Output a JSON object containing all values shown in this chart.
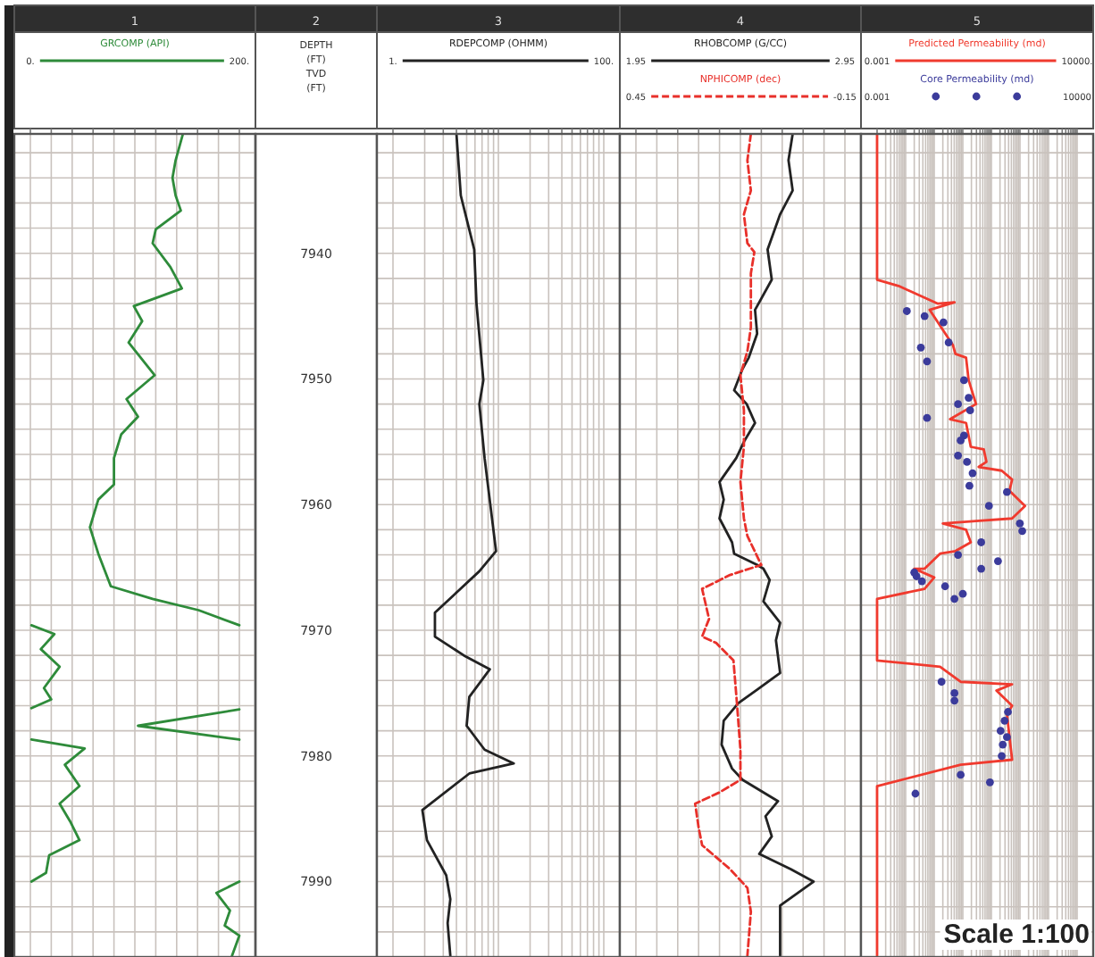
{
  "chart_data": [
    {
      "type": "line",
      "orientation": "horizontal",
      "title": "1",
      "subtitle": "2",
      "ylabel": "DEPTH (FT) TVD (FT)",
      "legend": "top",
      "grid": true,
      "ylim": [
        7996,
        7930.5
      ],
      "xlim": [
        0,
        200
      ],
      "xticks": [
        {
          "value": 0,
          "label": "0."
        },
        {
          "value": 20,
          "label": null
        },
        {
          "value": 40,
          "label": null
        },
        {
          "value": 60,
          "label": null
        },
        {
          "value": 80,
          "label": null
        },
        {
          "value": 100,
          "label": null
        },
        {
          "value": 120,
          "label": null
        },
        {
          "value": 140,
          "label": null
        },
        {
          "value": 160,
          "label": null
        },
        {
          "value": 180,
          "label": null
        },
        {
          "value": 200,
          "label": "200."
        }
      ],
      "yticks": [
        {
          "value": 7932,
          "label": null
        },
        {
          "value": 7934,
          "label": null
        },
        {
          "value": 7936,
          "label": null
        },
        {
          "value": 7938,
          "label": null
        },
        {
          "value": 7940,
          "label": "7940"
        },
        {
          "value": 7942,
          "label": null
        },
        {
          "value": 7944,
          "label": null
        },
        {
          "value": 7946,
          "label": null
        },
        {
          "value": 7948,
          "label": null
        },
        {
          "value": 7950,
          "label": "7950"
        },
        {
          "value": 7952,
          "label": null
        },
        {
          "value": 7954,
          "label": null
        },
        {
          "value": 7956,
          "label": null
        },
        {
          "value": 7958,
          "label": null
        },
        {
          "value": 7960,
          "label": "7960"
        },
        {
          "value": 7962,
          "label": null
        },
        {
          "value": 7964,
          "label": null
        },
        {
          "value": 7966,
          "label": null
        },
        {
          "value": 7968,
          "label": null
        },
        {
          "value": 7970,
          "label": "7970"
        },
        {
          "value": 7972,
          "label": null
        },
        {
          "value": 7974,
          "label": null
        },
        {
          "value": 7976,
          "label": null
        },
        {
          "value": 7978,
          "label": null
        },
        {
          "value": 7980,
          "label": "7980"
        },
        {
          "value": 7982,
          "label": null
        },
        {
          "value": 7984,
          "label": null
        },
        {
          "value": 7986,
          "label": null
        },
        {
          "value": 7988,
          "label": null
        },
        {
          "value": 7990,
          "label": "7990"
        },
        {
          "value": 7992,
          "label": null
        },
        {
          "value": 7994,
          "label": null
        }
      ],
      "series": [
        {
          "name": "GRCOMP (API)",
          "color": "#2e8b3a",
          "values": [
            146,
            139,
            136,
            139,
            144,
            120,
            117,
            134,
            145,
            99,
            107,
            94,
            119,
            92,
            103,
            87,
            80,
            80,
            65,
            57,
            65,
            77,
            117,
            161,
            200,
            null,
            1,
            23,
            10,
            28,
            13,
            20,
            1,
            null,
            200,
            103,
            200,
            null,
            1,
            52,
            33,
            47,
            28,
            38,
            47,
            18,
            15,
            1,
            null,
            200,
            178,
            191,
            186,
            200,
            193
          ],
          "x": [
            7930.5,
            7932.6,
            7934.0,
            7935.4,
            7936.6,
            7938.1,
            7939.2,
            7941.1,
            7942.8,
            7944.2,
            7945.4,
            7947.1,
            7949.7,
            7951.6,
            7953.0,
            7954.4,
            7956.3,
            7958.4,
            7959.6,
            7961.8,
            7963.9,
            7966.5,
            7967.5,
            7968.4,
            7969.6,
            null,
            7969.6,
            7970.3,
            7971.5,
            7972.9,
            7974.6,
            7975.5,
            7976.2,
            null,
            7976.3,
            7977.6,
            7978.7,
            null,
            7978.7,
            7979.4,
            7980.7,
            7982.4,
            7983.8,
            7985.2,
            7986.7,
            7987.9,
            7989.3,
            7990.0,
            null,
            7990.0,
            7990.9,
            7992.3,
            7993.5,
            7994.3,
            7995.9
          ]
        }
      ]
    },
    {
      "type": "line",
      "orientation": "horizontal",
      "title": "3",
      "legend": "top",
      "grid": true,
      "tick_labels": "x",
      "log": "x",
      "ylim": [
        7996,
        7930.5
      ],
      "xlim": [
        1,
        100
      ],
      "xticks": [
        {
          "value": 1,
          "label": "1."
        },
        {
          "value": 2,
          "label": null
        },
        {
          "value": 3,
          "label": null
        },
        {
          "value": 4,
          "label": null
        },
        {
          "value": 5,
          "label": null
        },
        {
          "value": 6,
          "label": null
        },
        {
          "value": 7,
          "label": null
        },
        {
          "value": 8,
          "label": null
        },
        {
          "value": 9,
          "label": null
        },
        {
          "value": 10,
          "label": null
        },
        {
          "value": 20,
          "label": null
        },
        {
          "value": 30,
          "label": null
        },
        {
          "value": 40,
          "label": null
        },
        {
          "value": 50,
          "label": null
        },
        {
          "value": 60,
          "label": null
        },
        {
          "value": 70,
          "label": null
        },
        {
          "value": 80,
          "label": null
        },
        {
          "value": 90,
          "label": null
        },
        {
          "value": 100,
          "label": "100."
        }
      ],
      "yticks": [
        {
          "value": 7932,
          "label": null
        },
        {
          "value": 7934,
          "label": null
        },
        {
          "value": 7936,
          "label": null
        },
        {
          "value": 7938,
          "label": null
        },
        {
          "value": 7940,
          "label": null
        },
        {
          "value": 7942,
          "label": null
        },
        {
          "value": 7944,
          "label": null
        },
        {
          "value": 7946,
          "label": null
        },
        {
          "value": 7948,
          "label": null
        },
        {
          "value": 7950,
          "label": null
        },
        {
          "value": 7952,
          "label": null
        },
        {
          "value": 7954,
          "label": null
        },
        {
          "value": 7956,
          "label": null
        },
        {
          "value": 7958,
          "label": null
        },
        {
          "value": 7960,
          "label": null
        },
        {
          "value": 7962,
          "label": null
        },
        {
          "value": 7964,
          "label": null
        },
        {
          "value": 7966,
          "label": null
        },
        {
          "value": 7968,
          "label": null
        },
        {
          "value": 7970,
          "label": null
        },
        {
          "value": 7972,
          "label": null
        },
        {
          "value": 7974,
          "label": null
        },
        {
          "value": 7976,
          "label": null
        },
        {
          "value": 7978,
          "label": null
        },
        {
          "value": 7980,
          "label": null
        },
        {
          "value": 7982,
          "label": null
        },
        {
          "value": 7984,
          "label": null
        },
        {
          "value": 7986,
          "label": null
        },
        {
          "value": 7988,
          "label": null
        },
        {
          "value": 7990,
          "label": null
        },
        {
          "value": 7992,
          "label": null
        },
        {
          "value": 7994,
          "label": null
        }
      ],
      "series": [
        {
          "name": "RDEPCOMP (OHMM)",
          "color": "#222222",
          "values": [
            4.0,
            4.4,
            5.9,
            6.2,
            7.2,
            6.6,
            7.4,
            9.5,
            6.6,
            2.5,
            2.5,
            4.7,
            8.3,
            5.3,
            5.0,
            7.4,
            14,
            5.3,
            1.9,
            2.1,
            3.2,
            3.5,
            3.3,
            3.5
          ],
          "x": [
            7930.5,
            7935.4,
            7939.7,
            7944.0,
            7950.1,
            7952.0,
            7956.3,
            7963.7,
            7965.3,
            7968.6,
            7970.5,
            7972.0,
            7973.1,
            7975.3,
            7977.6,
            7979.5,
            7980.6,
            7981.4,
            7984.3,
            7986.7,
            7989.5,
            7991.4,
            7993.3,
            7995.9
          ]
        }
      ]
    },
    {
      "type": "line",
      "orientation": "horizontal",
      "title": "4",
      "legend": "top",
      "grid": true,
      "tick_labels": "x",
      "ylim": [
        7996,
        7930.5
      ],
      "xlim": [
        1.95,
        2.95
      ],
      "xticks": [
        {
          "value": 1.95,
          "label": "1.95"
        },
        {
          "value": 2.05,
          "label": null
        },
        {
          "value": 2.15,
          "label": null
        },
        {
          "value": 2.25,
          "label": null
        },
        {
          "value": 2.35,
          "label": null
        },
        {
          "value": 2.45,
          "label": null
        },
        {
          "value": 2.55,
          "label": null
        },
        {
          "value": 2.65,
          "label": null
        },
        {
          "value": 2.75,
          "label": null
        },
        {
          "value": 2.85,
          "label": null
        },
        {
          "value": 2.95,
          "label": "2.95"
        }
      ],
      "x2lim": [
        0.45,
        -0.15
      ],
      "x2ticks": [
        {
          "value": 0.45,
          "label": "0.45"
        },
        {
          "value": -0.15,
          "label": "-0.15"
        }
      ],
      "yticks": [
        {
          "value": 7932,
          "label": null
        },
        {
          "value": 7934,
          "label": null
        },
        {
          "value": 7936,
          "label": null
        },
        {
          "value": 7938,
          "label": null
        },
        {
          "value": 7940,
          "label": null
        },
        {
          "value": 7942,
          "label": null
        },
        {
          "value": 7944,
          "label": null
        },
        {
          "value": 7946,
          "label": null
        },
        {
          "value": 7948,
          "label": null
        },
        {
          "value": 7950,
          "label": null
        },
        {
          "value": 7952,
          "label": null
        },
        {
          "value": 7954,
          "label": null
        },
        {
          "value": 7956,
          "label": null
        },
        {
          "value": 7958,
          "label": null
        },
        {
          "value": 7960,
          "label": null
        },
        {
          "value": 7962,
          "label": null
        },
        {
          "value": 7964,
          "label": null
        },
        {
          "value": 7966,
          "label": null
        },
        {
          "value": 7968,
          "label": null
        },
        {
          "value": 7970,
          "label": null
        },
        {
          "value": 7972,
          "label": null
        },
        {
          "value": 7974,
          "label": null
        },
        {
          "value": 7976,
          "label": null
        },
        {
          "value": 7978,
          "label": null
        },
        {
          "value": 7980,
          "label": null
        },
        {
          "value": 7982,
          "label": null
        },
        {
          "value": 7984,
          "label": null
        },
        {
          "value": 7986,
          "label": null
        },
        {
          "value": 7988,
          "label": null
        },
        {
          "value": 7990,
          "label": null
        },
        {
          "value": 7992,
          "label": null
        },
        {
          "value": 7994,
          "label": null
        }
      ],
      "series": [
        {
          "name": "RHOBCOMP (G/CC)",
          "color": "#222222",
          "values": [
            2.7,
            2.68,
            2.7,
            2.64,
            2.58,
            2.6,
            2.52,
            2.53,
            2.49,
            2.46,
            2.42,
            2.48,
            2.52,
            2.47,
            2.43,
            2.35,
            2.37,
            2.35,
            2.41,
            2.42,
            2.53,
            2.56,
            2.59,
            2.56,
            2.64,
            2.62,
            2.64,
            2.54,
            2.44,
            2.37,
            2.36,
            2.41,
            2.46,
            2.63,
            2.57,
            2.6,
            2.54,
            2.69,
            2.8,
            2.64,
            2.64
          ],
          "x": [
            7930.5,
            7932.6,
            7935.0,
            7936.9,
            7939.7,
            7942.1,
            7944.5,
            7946.4,
            7948.3,
            7949.2,
            7950.9,
            7952.0,
            7953.5,
            7954.9,
            7956.3,
            7958.2,
            7959.6,
            7961.1,
            7963.0,
            7963.9,
            7964.8,
            7965.1,
            7966.0,
            7967.7,
            7969.4,
            7970.8,
            7973.4,
            7974.6,
            7975.8,
            7977.2,
            7979.1,
            7981.0,
            7981.9,
            7983.6,
            7984.8,
            7986.4,
            7987.8,
            7989.0,
            7990.0,
            7991.9,
            7995.9
          ]
        },
        {
          "name": "NPHICOMP (dec)",
          "color": "#e8302a",
          "axis": "x2",
          "line_style": "dashed",
          "values": [
            0.12,
            0.13,
            0.12,
            0.14,
            0.13,
            0.11,
            0.12,
            0.12,
            0.12,
            0.13,
            0.15,
            0.14,
            0.14,
            0.15,
            0.14,
            0.13,
            0.09,
            0.18,
            0.26,
            0.24,
            0.26,
            0.22,
            0.17,
            0.16,
            0.15,
            0.15,
            0.21,
            0.28,
            0.27,
            0.26,
            0.18,
            0.13,
            0.12,
            0.13
          ],
          "x": [
            7930.5,
            7932.6,
            7935.0,
            7936.9,
            7939.2,
            7939.9,
            7941.6,
            7943.5,
            7945.9,
            7947.8,
            7949.7,
            7952.5,
            7955.4,
            7958.2,
            7961.1,
            7962.5,
            7964.8,
            7965.6,
            7966.7,
            7969.1,
            7970.5,
            7971.0,
            7972.4,
            7975.8,
            7979.5,
            7981.9,
            7982.9,
            7983.8,
            7985.7,
            7987.1,
            7989.0,
            7990.5,
            7992.4,
            7995.9
          ]
        }
      ]
    },
    {
      "type": "line",
      "orientation": "horizontal",
      "title": "5",
      "legend": "top",
      "grid": true,
      "tick_labels": "x",
      "log": "x",
      "ylim": [
        7996,
        7930.5
      ],
      "xlim": [
        0.001,
        10000
      ],
      "xticks": [
        {
          "value": 0.001,
          "label": "0.001"
        },
        {
          "value": 0.002,
          "label": null
        },
        {
          "value": 0.003,
          "label": null
        },
        {
          "value": 0.004,
          "label": null
        },
        {
          "value": 0.005,
          "label": null
        },
        {
          "value": 0.006,
          "label": null
        },
        {
          "value": 0.007,
          "label": null
        },
        {
          "value": 0.008,
          "label": null
        },
        {
          "value": 0.009,
          "label": null
        },
        {
          "value": 0.01,
          "label": null
        },
        {
          "value": 0.02,
          "label": null
        },
        {
          "value": 0.03,
          "label": null
        },
        {
          "value": 0.04,
          "label": null
        },
        {
          "value": 0.05,
          "label": null
        },
        {
          "value": 0.06,
          "label": null
        },
        {
          "value": 0.07,
          "label": null
        },
        {
          "value": 0.08,
          "label": null
        },
        {
          "value": 0.09,
          "label": null
        },
        {
          "value": 0.1,
          "label": null
        },
        {
          "value": 0.2,
          "label": null
        },
        {
          "value": 0.3,
          "label": null
        },
        {
          "value": 0.4,
          "label": null
        },
        {
          "value": 0.5,
          "label": null
        },
        {
          "value": 0.6,
          "label": null
        },
        {
          "value": 0.7,
          "label": null
        },
        {
          "value": 0.8,
          "label": null
        },
        {
          "value": 0.9,
          "label": null
        },
        {
          "value": 1,
          "label": null
        },
        {
          "value": 2,
          "label": null
        },
        {
          "value": 3,
          "label": null
        },
        {
          "value": 4,
          "label": null
        },
        {
          "value": 5,
          "label": null
        },
        {
          "value": 6,
          "label": null
        },
        {
          "value": 7,
          "label": null
        },
        {
          "value": 8,
          "label": null
        },
        {
          "value": 9,
          "label": null
        },
        {
          "value": 10,
          "label": null
        },
        {
          "value": 20,
          "label": null
        },
        {
          "value": 30,
          "label": null
        },
        {
          "value": 40,
          "label": null
        },
        {
          "value": 50,
          "label": null
        },
        {
          "value": 60,
          "label": null
        },
        {
          "value": 70,
          "label": null
        },
        {
          "value": 80,
          "label": null
        },
        {
          "value": 90,
          "label": null
        },
        {
          "value": 100,
          "label": null
        },
        {
          "value": 200,
          "label": null
        },
        {
          "value": 300,
          "label": null
        },
        {
          "value": 400,
          "label": null
        },
        {
          "value": 500,
          "label": null
        },
        {
          "value": 600,
          "label": null
        },
        {
          "value": 700,
          "label": null
        },
        {
          "value": 800,
          "label": null
        },
        {
          "value": 900,
          "label": null
        },
        {
          "value": 1000,
          "label": null
        },
        {
          "value": 2000,
          "label": null
        },
        {
          "value": 3000,
          "label": null
        },
        {
          "value": 4000,
          "label": null
        },
        {
          "value": 5000,
          "label": null
        },
        {
          "value": 6000,
          "label": null
        },
        {
          "value": 7000,
          "label": null
        },
        {
          "value": 8000,
          "label": null
        },
        {
          "value": 9000,
          "label": null
        },
        {
          "value": 10000,
          "label": "10000."
        }
      ],
      "x2lim": [
        0.001,
        10000
      ],
      "x2ticks": [
        {
          "value": 0.001,
          "label": "0.001"
        },
        {
          "value": 10000,
          "label": "10000"
        }
      ],
      "yticks": [
        {
          "value": 7932,
          "label": null
        },
        {
          "value": 7934,
          "label": null
        },
        {
          "value": 7936,
          "label": null
        },
        {
          "value": 7938,
          "label": null
        },
        {
          "value": 7940,
          "label": null
        },
        {
          "value": 7942,
          "label": null
        },
        {
          "value": 7944,
          "label": null
        },
        {
          "value": 7946,
          "label": null
        },
        {
          "value": 7948,
          "label": null
        },
        {
          "value": 7950,
          "label": null
        },
        {
          "value": 7952,
          "label": null
        },
        {
          "value": 7954,
          "label": null
        },
        {
          "value": 7956,
          "label": null
        },
        {
          "value": 7958,
          "label": null
        },
        {
          "value": 7960,
          "label": null
        },
        {
          "value": 7962,
          "label": null
        },
        {
          "value": 7964,
          "label": null
        },
        {
          "value": 7966,
          "label": null
        },
        {
          "value": 7968,
          "label": null
        },
        {
          "value": 7970,
          "label": null
        },
        {
          "value": 7972,
          "label": null
        },
        {
          "value": 7974,
          "label": null
        },
        {
          "value": 7976,
          "label": null
        },
        {
          "value": 7978,
          "label": null
        },
        {
          "value": 7980,
          "label": null
        },
        {
          "value": 7982,
          "label": null
        },
        {
          "value": 7984,
          "label": null
        },
        {
          "value": 7986,
          "label": null
        },
        {
          "value": 7988,
          "label": null
        },
        {
          "value": 7990,
          "label": null
        },
        {
          "value": 7992,
          "label": null
        },
        {
          "value": 7994,
          "label": null
        }
      ],
      "annotations": [
        "Scale 1:100"
      ],
      "series": [
        {
          "name": "Predicted Permeability (md)",
          "color": "#f03a2e",
          "values": [
            0.001,
            0.001,
            0.0057,
            0.13,
            0.51,
            0.069,
            0.2,
            0.45,
            0.55,
            1.3,
            1.6,
            2.9,
            0.36,
            1.3,
            1.9,
            5.4,
            6.7,
            3.6,
            23,
            53,
            43,
            150,
            53,
            2.9,
            0.2,
            1.3,
            1.9,
            0.55,
            0.16,
            0.046,
            0.02,
            0.1,
            0.046,
            0.001,
            0.001,
            0.16,
            0.84,
            53,
            15,
            53,
            35,
            53,
            0.84,
            0.001,
            0.001
          ],
          "x": [
            7930.5,
            7942.1,
            7942.6,
            7944.0,
            7943.9,
            7944.5,
            7946.1,
            7947.3,
            7948.0,
            7948.3,
            7950.1,
            7952.0,
            7953.2,
            7953.5,
            7955.4,
            7955.6,
            7956.6,
            7957.0,
            7957.3,
            7958.0,
            7958.9,
            7960.1,
            7961.1,
            7961.3,
            7961.5,
            7962.0,
            7963.0,
            7963.7,
            7963.9,
            7965.1,
            7965.1,
            7965.8,
            7966.7,
            7967.5,
            7972.4,
            7972.9,
            7974.1,
            7974.3,
            7974.8,
            7976.0,
            7976.7,
            7980.3,
            7980.7,
            7982.4,
            7995.9
          ]
        },
        {
          "name": "Core Permeability (md)",
          "type": "scatter",
          "marker": "circle",
          "color": "#3b3b9b",
          "values": [
            0.011,
            0.046,
            0.21,
            0.32,
            0.034,
            0.056,
            1.1,
            1.6,
            0.68,
            1.8,
            0.056,
            1.1,
            0.84,
            0.68,
            1.4,
            2.2,
            1.7,
            35,
            8.2,
            99,
            120,
            4.4,
            0.68,
            17,
            4.4,
            0.02,
            0.024,
            0.037,
            0.24,
            1.0,
            0.51,
            0.18,
            0.51,
            0.51,
            38,
            29,
            21,
            35,
            25,
            23,
            0.84,
            8.9,
            0.022
          ],
          "x": [
            7944.6,
            7945.0,
            7945.5,
            7947.1,
            7947.5,
            7948.6,
            7950.1,
            7951.5,
            7952.0,
            7952.5,
            7953.1,
            7954.5,
            7954.9,
            7956.1,
            7956.6,
            7957.5,
            7958.5,
            7959.0,
            7960.1,
            7961.5,
            7962.1,
            7963.0,
            7964.0,
            7964.5,
            7965.1,
            7965.4,
            7965.7,
            7966.1,
            7966.5,
            7967.1,
            7967.5,
            7974.1,
            7975.0,
            7975.6,
            7976.5,
            7977.2,
            7978.0,
            7978.5,
            7979.1,
            7980.0,
            7981.5,
            7982.1,
            7983.0
          ]
        }
      ]
    }
  ]
}
